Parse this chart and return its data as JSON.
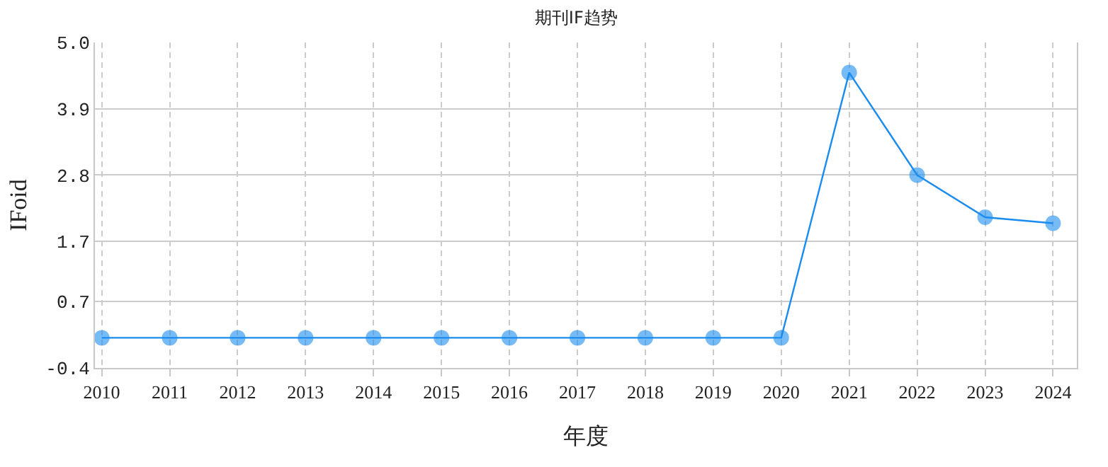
{
  "chart_data": {
    "type": "line",
    "title": "期刊IF趋势",
    "xlabel": "年度",
    "ylabel": "IFoid",
    "categories": [
      "2010",
      "2011",
      "2012",
      "2013",
      "2014",
      "2015",
      "2016",
      "2017",
      "2018",
      "2019",
      "2020",
      "2021",
      "2022",
      "2023",
      "2024"
    ],
    "series": [
      {
        "color": "#1a8cf0",
        "values": [
          0.1,
          0.1,
          0.1,
          0.1,
          0.1,
          0.1,
          0.1,
          0.1,
          0.1,
          0.1,
          0.1,
          4.5,
          2.8,
          2.1,
          2.0
        ]
      }
    ],
    "ylim": [
      -0.4,
      5.0
    ],
    "yticks": [
      -0.4,
      0.7,
      1.7,
      2.8,
      3.9,
      {
        "value": 5.0,
        "label": "5.0"
      }
    ],
    "grid": true,
    "marker": "circle",
    "line_style": "solid"
  }
}
